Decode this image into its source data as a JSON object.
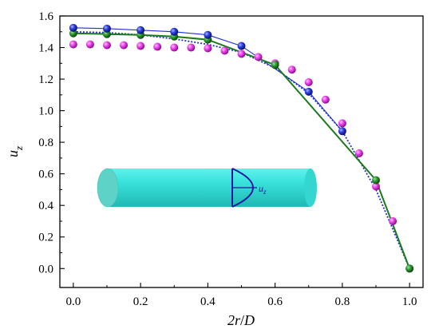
{
  "chart_data": {
    "type": "line",
    "title": "",
    "xlabel": "2r/D",
    "ylabel": "u_z",
    "xlim": [
      -0.04,
      1.04
    ],
    "ylim": [
      -0.12,
      1.6
    ],
    "xticks": [
      "0.0",
      "0.2",
      "0.4",
      "0.6",
      "0.8",
      "1.0"
    ],
    "yticks": [
      "0.0",
      "0.2",
      "0.4",
      "0.6",
      "0.8",
      "1.0",
      "1.2",
      "1.4",
      "1.6"
    ],
    "grid": false,
    "legend": "none",
    "inset_label": "u",
    "inset_label_sub": "z",
    "colors": {
      "blue_series": "#1f2fd0",
      "green_series": "#1b7a1b",
      "magenta_series": "#e040e0",
      "cylinder": "#39e0da",
      "cylinder_end": "#5fd2c8",
      "profile": "#1a1aa0"
    },
    "series": [
      {
        "style": "blue-solid-with-markers",
        "x": [
          0.0,
          0.1,
          0.2,
          0.3,
          0.4,
          0.5,
          0.7,
          0.8
        ],
        "y": [
          1.525,
          1.52,
          1.51,
          1.5,
          1.48,
          1.41,
          1.12,
          0.87
        ]
      },
      {
        "style": "green-solid-with-markers",
        "x": [
          0.0,
          0.1,
          0.2,
          0.3,
          0.4,
          0.6,
          0.9,
          1.0
        ],
        "y": [
          1.49,
          1.485,
          1.48,
          1.47,
          1.45,
          1.29,
          0.56,
          0.0
        ]
      },
      {
        "style": "magenta-markers",
        "x": [
          0.0,
          0.05,
          0.1,
          0.15,
          0.2,
          0.25,
          0.3,
          0.35,
          0.4,
          0.45,
          0.5,
          0.55,
          0.6,
          0.65,
          0.7,
          0.75,
          0.8,
          0.85,
          0.9,
          0.95,
          1.0
        ],
        "y": [
          1.42,
          1.42,
          1.415,
          1.415,
          1.41,
          1.405,
          1.4,
          1.4,
          1.395,
          1.38,
          1.36,
          1.34,
          1.3,
          1.26,
          1.18,
          1.07,
          0.92,
          0.73,
          0.52,
          0.3,
          0.0
        ]
      },
      {
        "style": "blue-dotted",
        "x": [
          0.0,
          0.1,
          0.2,
          0.3,
          0.4,
          0.5,
          0.6,
          0.7,
          0.8,
          0.9,
          1.0
        ],
        "y": [
          1.5,
          1.495,
          1.48,
          1.455,
          1.42,
          1.37,
          1.27,
          1.11,
          0.87,
          0.5,
          0.0
        ]
      }
    ]
  }
}
